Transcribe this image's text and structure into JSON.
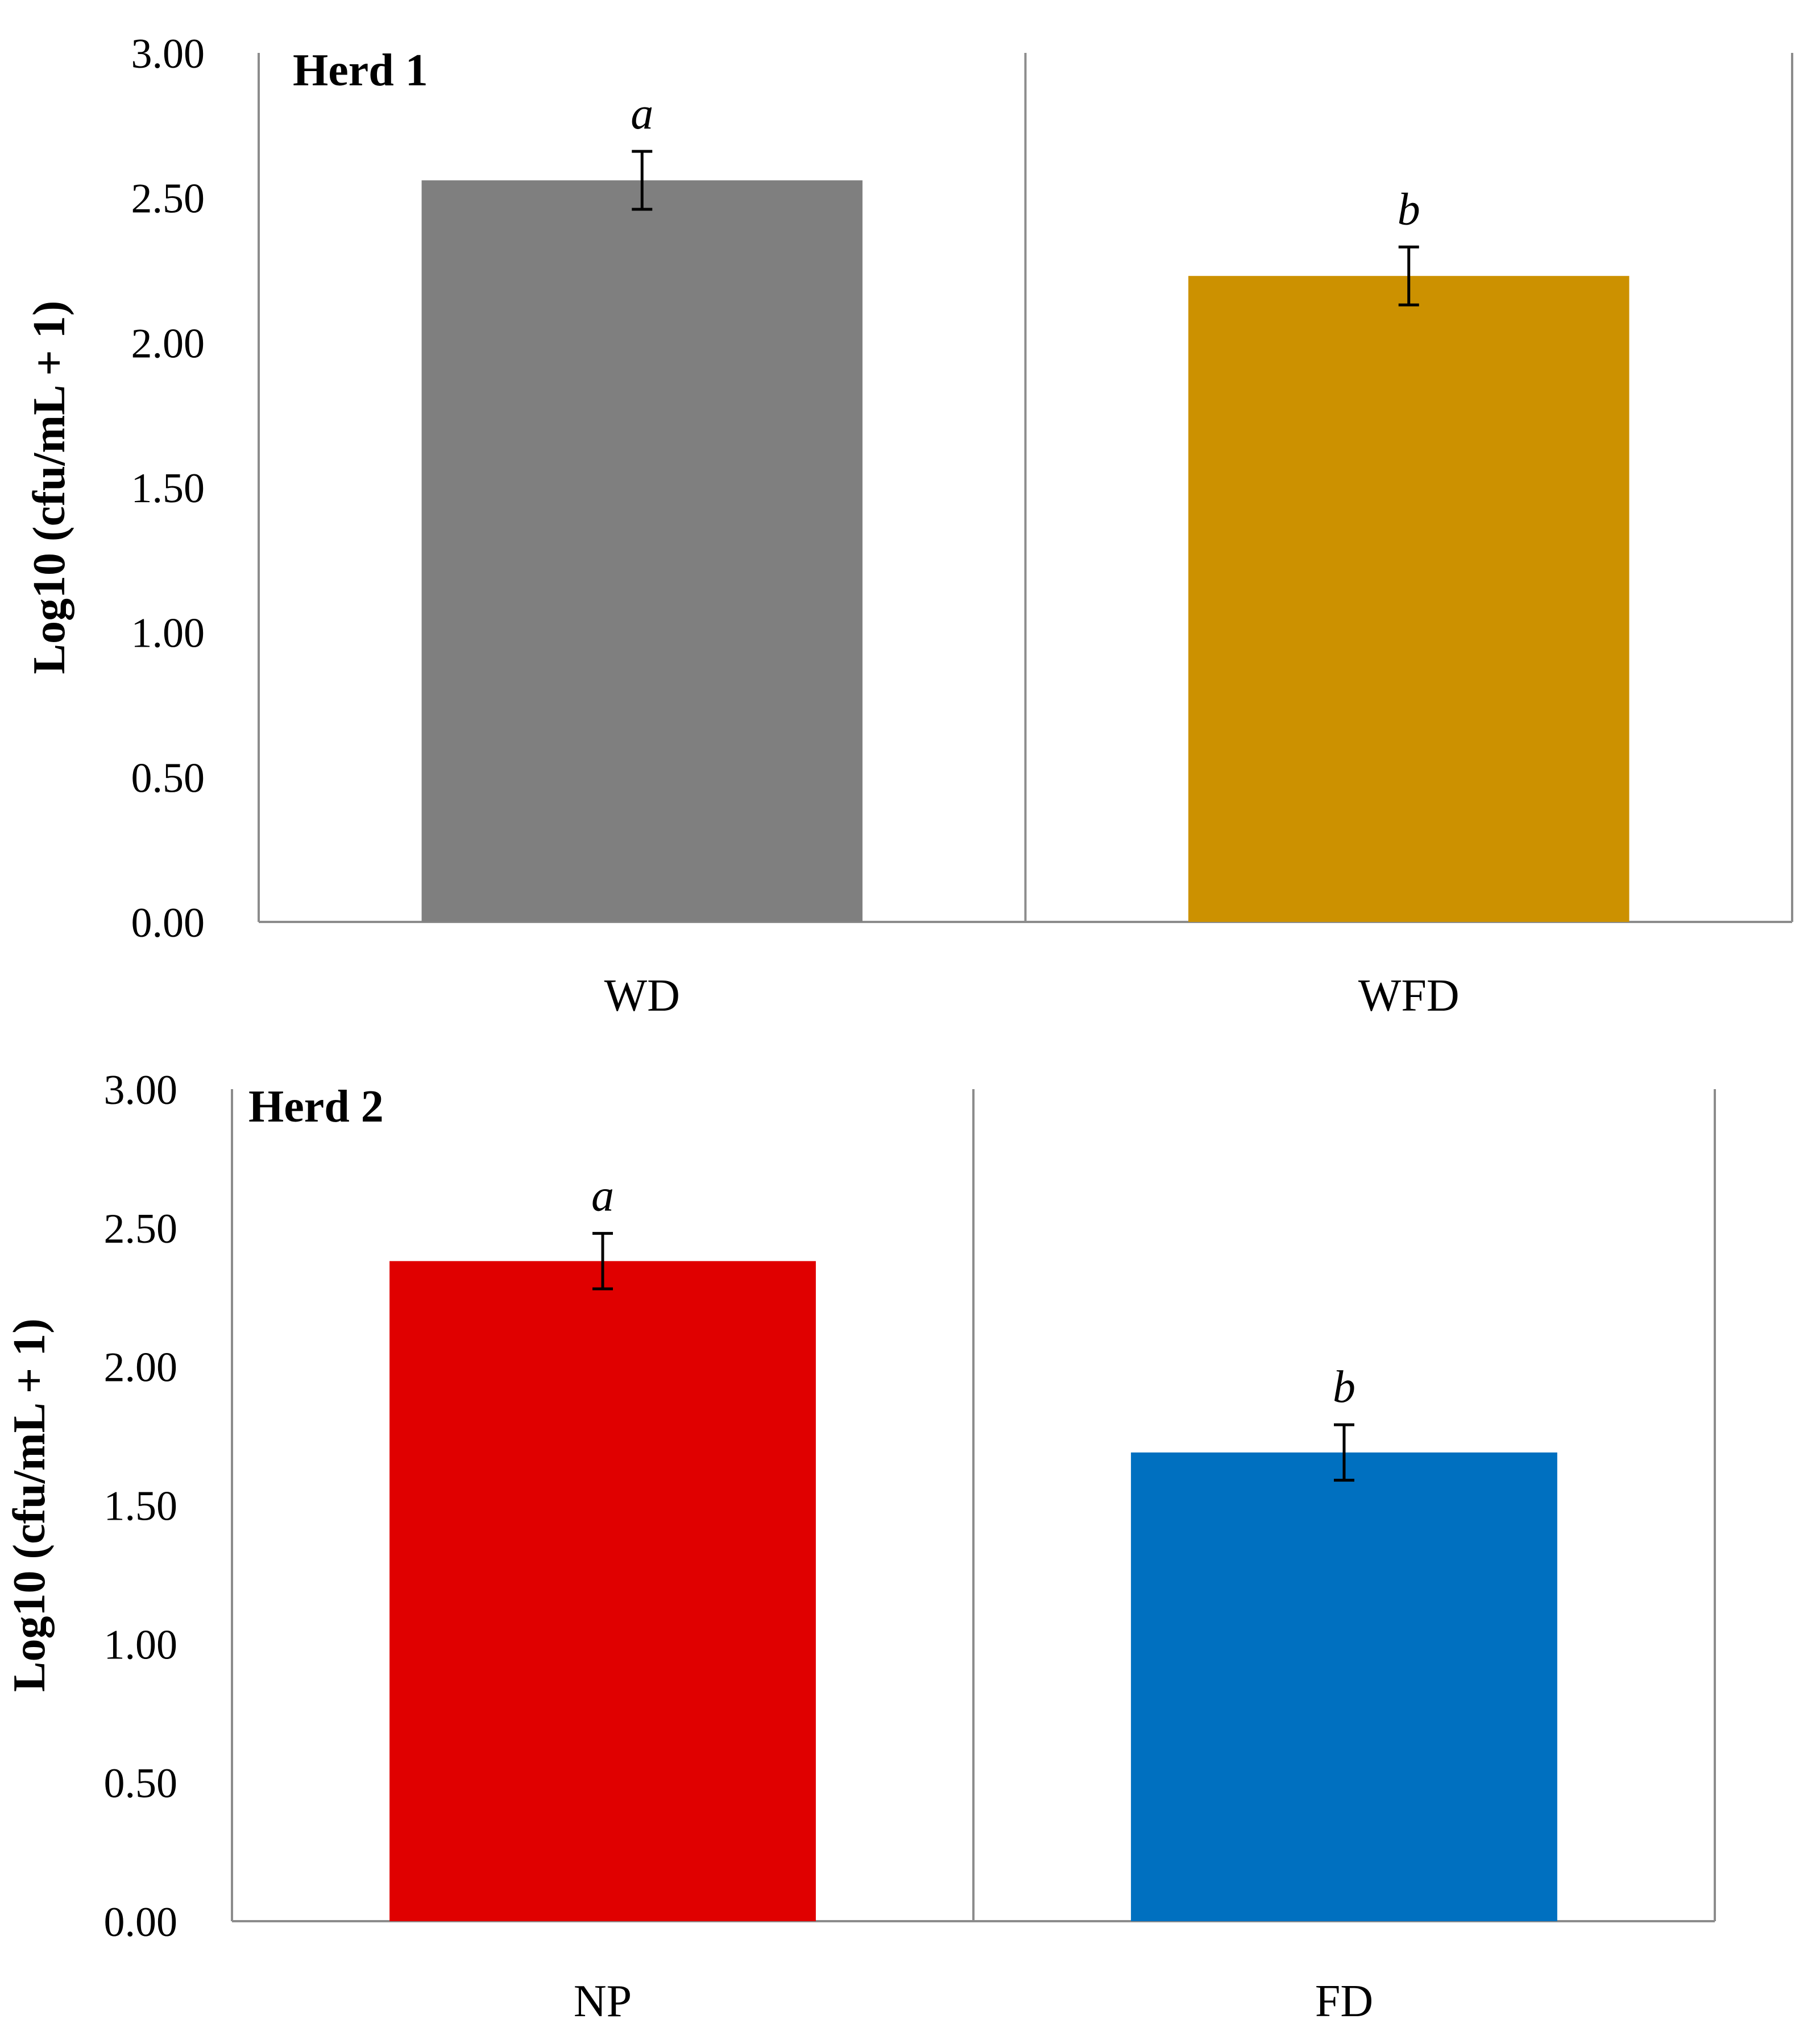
{
  "chart_data": [
    {
      "type": "bar",
      "title": "Herd 1",
      "xlabel": "",
      "ylabel": "Log10 (cfu/mL + 1)",
      "ylim": [
        0,
        3
      ],
      "yticks": [
        "0.00",
        "0.50",
        "1.00",
        "1.50",
        "2.00",
        "2.50",
        "3.00"
      ],
      "categories": [
        "WD",
        "WFD"
      ],
      "values": [
        2.56,
        2.23
      ],
      "errors": [
        0.1,
        0.1
      ],
      "significance": [
        "a",
        "b"
      ],
      "colors": [
        "#7f7f7f",
        "#cc9100"
      ],
      "grid": false
    },
    {
      "type": "bar",
      "title": "Herd 2",
      "xlabel": "",
      "ylabel": "Log10 (cfu/mL + 1)",
      "ylim": [
        0,
        3
      ],
      "yticks": [
        "0.00",
        "0.50",
        "1.00",
        "1.50",
        "2.00",
        "2.50",
        "3.00"
      ],
      "categories": [
        "NP",
        "FD"
      ],
      "values": [
        2.38,
        1.69
      ],
      "errors": [
        0.1,
        0.1
      ],
      "significance": [
        "a",
        "b"
      ],
      "colors": [
        "#e00000",
        "#0070c0"
      ],
      "grid": false
    }
  ]
}
